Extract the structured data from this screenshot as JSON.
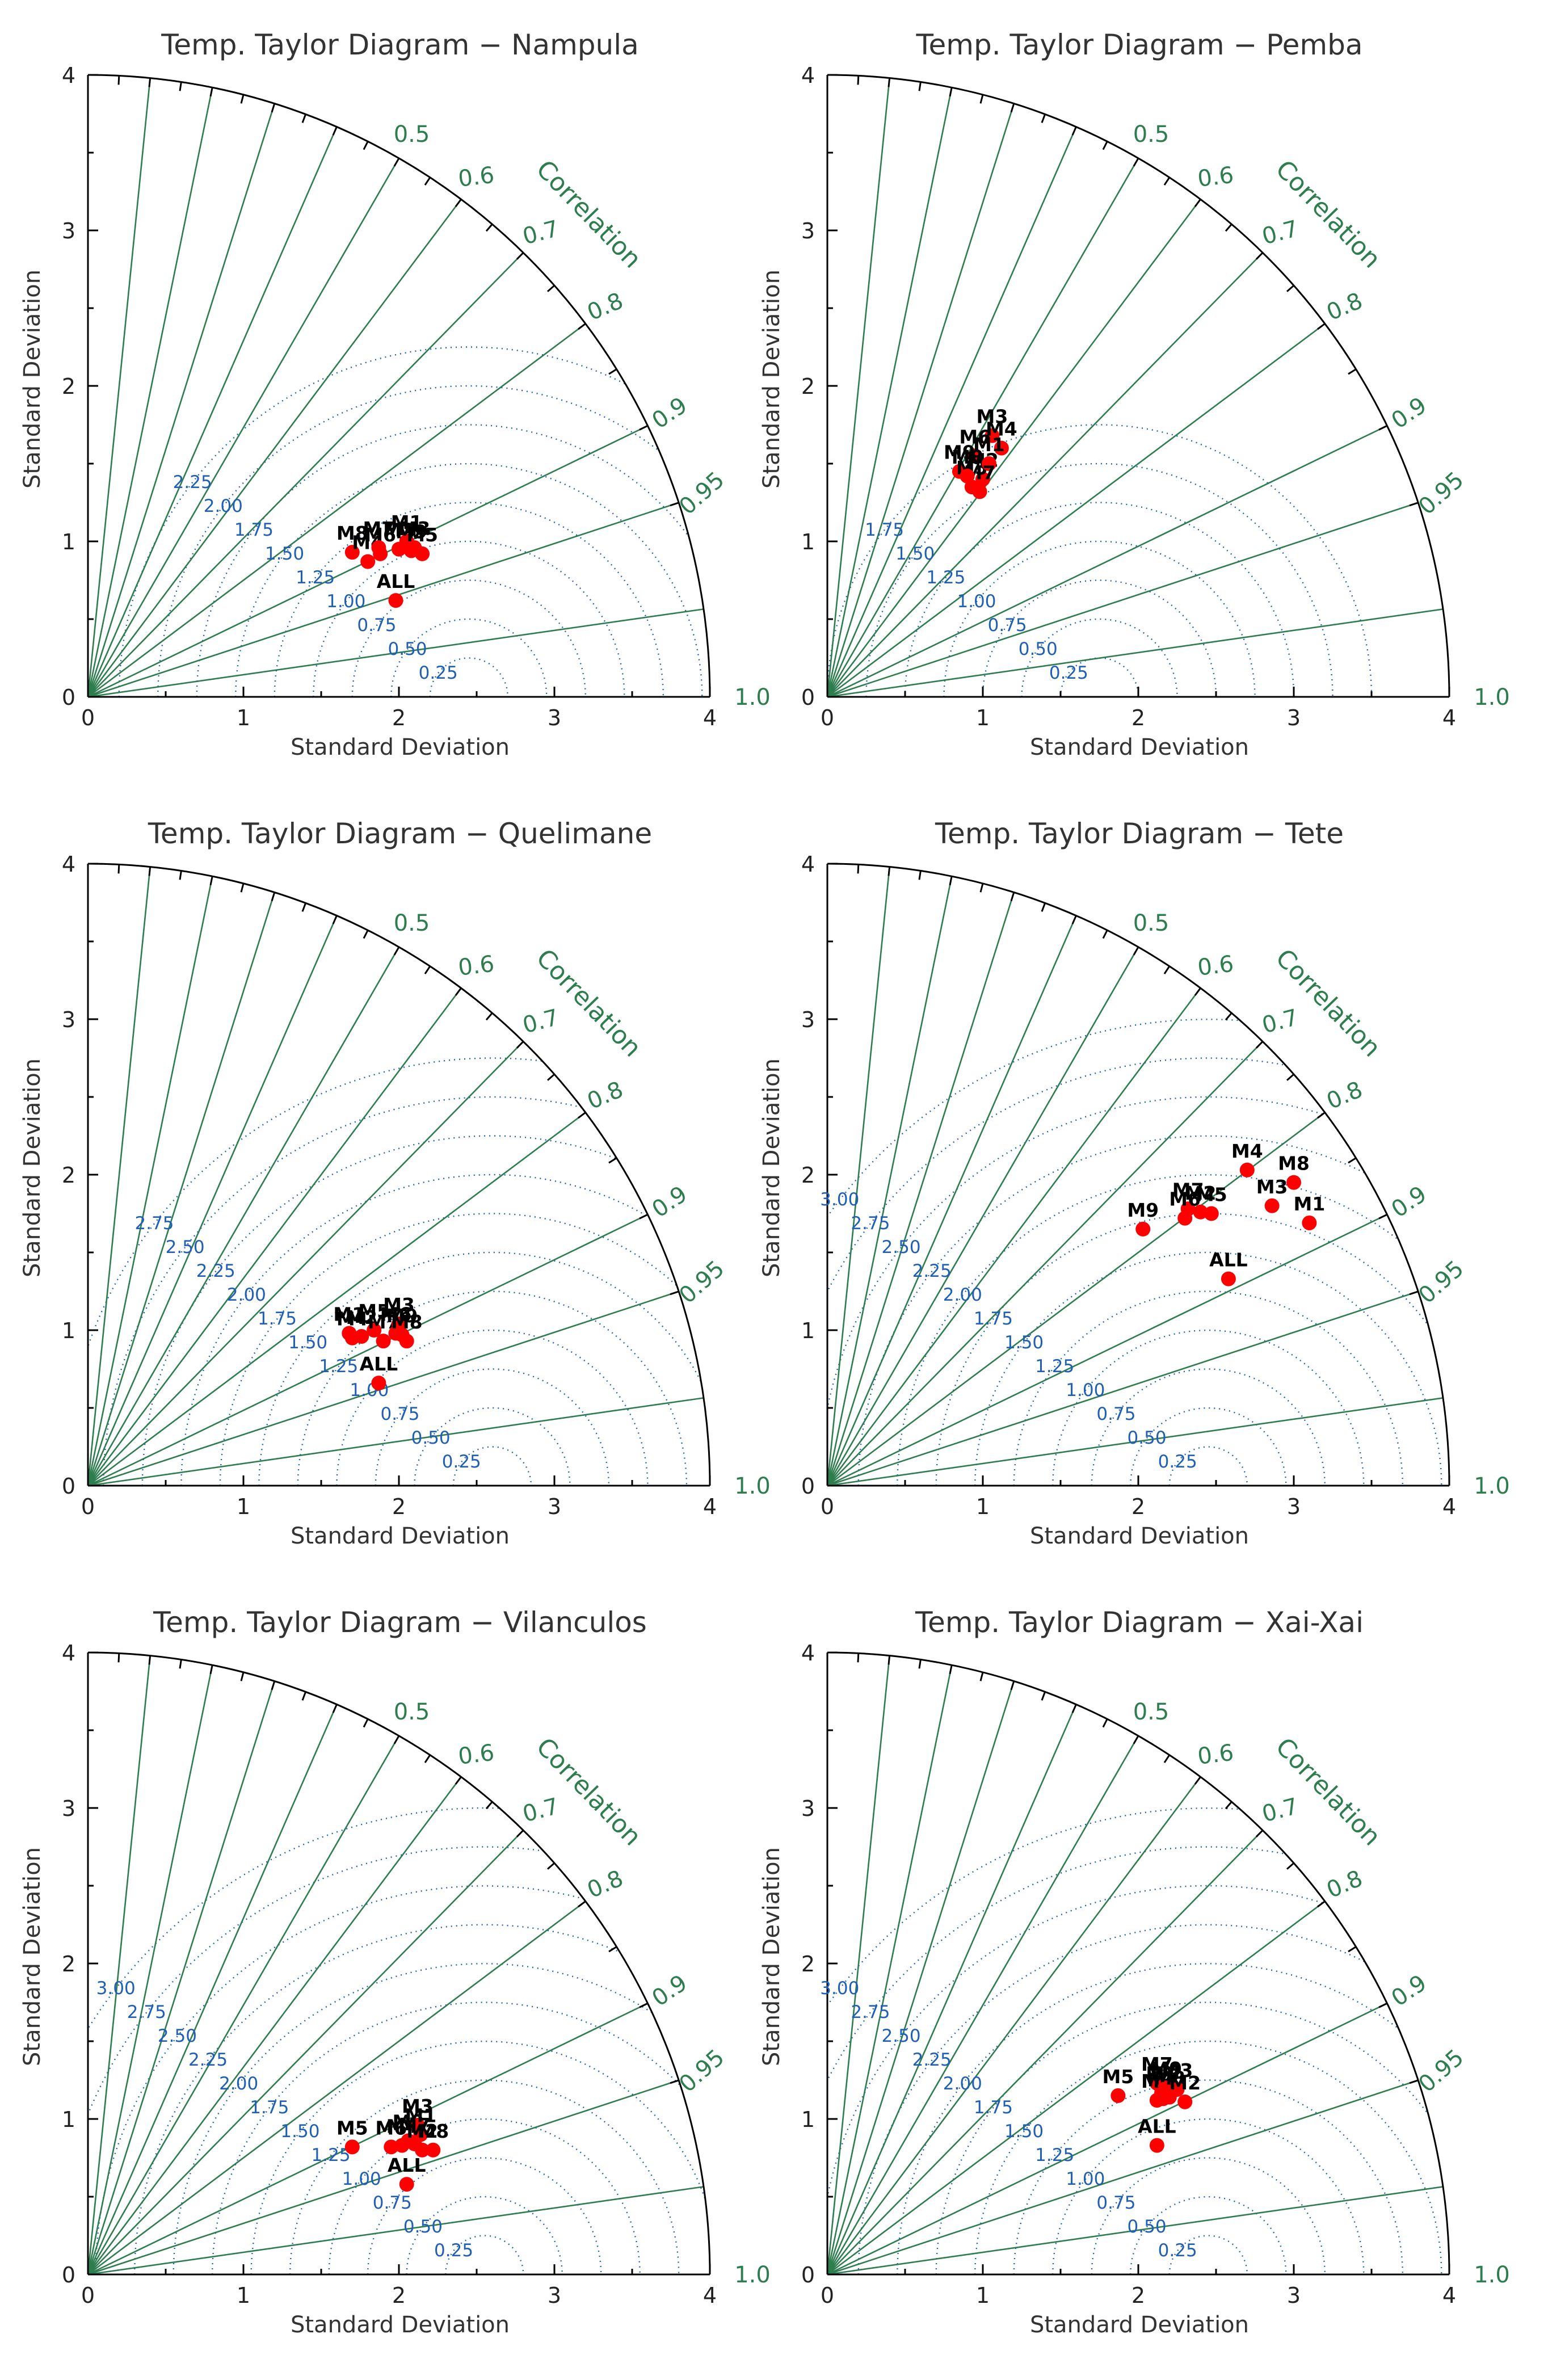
{
  "chart_data": [
    {
      "type": "scatter",
      "subtype": "taylor",
      "title": "Temp. Taylor Diagram − Nampula",
      "xlabel": "Standard Deviation",
      "ylabel": "Standard Deviation",
      "corr_title": "Correlation",
      "xlim": [
        0,
        4
      ],
      "ylim": [
        0,
        4
      ],
      "ticks": [
        "0",
        "1",
        "2",
        "3",
        "4"
      ],
      "corr_ticks": [
        "0.5",
        "0.6",
        "0.7",
        "0.8",
        "0.9",
        "0.95",
        "1.0"
      ],
      "ref_std": 2.45,
      "rms_levels": [
        "2.25",
        "2.00",
        "1.75",
        "1.50",
        "1.25",
        "1.00",
        "0.75",
        "0.50",
        "0.25"
      ],
      "points": [
        {
          "name": "M8",
          "x": 1.7,
          "y": 0.93
        },
        {
          "name": "M4",
          "x": 1.8,
          "y": 0.87
        },
        {
          "name": "M6",
          "x": 1.88,
          "y": 0.92
        },
        {
          "name": "M7",
          "x": 1.87,
          "y": 0.96
        },
        {
          "name": "M2",
          "x": 2.0,
          "y": 0.95
        },
        {
          "name": "M1",
          "x": 2.05,
          "y": 1.0
        },
        {
          "name": "M3",
          "x": 2.1,
          "y": 0.96
        },
        {
          "name": "M5",
          "x": 2.15,
          "y": 0.92
        },
        {
          "name": "M9",
          "x": 2.08,
          "y": 0.94
        },
        {
          "name": "ALL",
          "x": 1.98,
          "y": 0.62
        }
      ]
    },
    {
      "type": "scatter",
      "subtype": "taylor",
      "title": "Temp. Taylor Diagram − Pemba",
      "xlabel": "Standard Deviation",
      "ylabel": "Standard Deviation",
      "corr_title": "Correlation",
      "xlim": [
        0,
        4
      ],
      "ylim": [
        0,
        4
      ],
      "ticks": [
        "0",
        "1",
        "2",
        "3",
        "4"
      ],
      "corr_ticks": [
        "0.5",
        "0.6",
        "0.7",
        "0.8",
        "0.9",
        "0.95",
        "1.0"
      ],
      "ref_std": 1.75,
      "rms_levels": [
        "1.75",
        "1.50",
        "1.25",
        "1.00",
        "0.75",
        "0.50",
        "0.25"
      ],
      "points": [
        {
          "name": "M3",
          "x": 1.06,
          "y": 1.68
        },
        {
          "name": "M4",
          "x": 1.12,
          "y": 1.6
        },
        {
          "name": "M6",
          "x": 0.95,
          "y": 1.55
        },
        {
          "name": "M9",
          "x": 0.85,
          "y": 1.45
        },
        {
          "name": "M2",
          "x": 1.0,
          "y": 1.4
        },
        {
          "name": "M5",
          "x": 0.93,
          "y": 1.35
        },
        {
          "name": "M1",
          "x": 1.04,
          "y": 1.5
        },
        {
          "name": "M7",
          "x": 0.98,
          "y": 1.32
        },
        {
          "name": "M8",
          "x": 0.9,
          "y": 1.42
        }
      ]
    },
    {
      "type": "scatter",
      "subtype": "taylor",
      "title": "Temp. Taylor Diagram − Quelimane",
      "xlabel": "Standard Deviation",
      "ylabel": "Standard Deviation",
      "corr_title": "Correlation",
      "xlim": [
        0,
        4
      ],
      "ylim": [
        0,
        4
      ],
      "ticks": [
        "0",
        "1",
        "2",
        "3",
        "4"
      ],
      "corr_ticks": [
        "0.5",
        "0.6",
        "0.7",
        "0.8",
        "0.9",
        "0.95",
        "1.0"
      ],
      "ref_std": 2.6,
      "rms_levels": [
        "2.75",
        "2.50",
        "2.25",
        "2.00",
        "1.75",
        "1.50",
        "1.25",
        "1.00",
        "0.75",
        "0.50",
        "0.25"
      ],
      "points": [
        {
          "name": "M1",
          "x": 1.68,
          "y": 0.98
        },
        {
          "name": "M2",
          "x": 1.76,
          "y": 0.96
        },
        {
          "name": "M4",
          "x": 1.7,
          "y": 0.95
        },
        {
          "name": "M5",
          "x": 1.84,
          "y": 1.0
        },
        {
          "name": "M7",
          "x": 1.9,
          "y": 0.93
        },
        {
          "name": "M3",
          "x": 2.0,
          "y": 1.04
        },
        {
          "name": "M6",
          "x": 1.98,
          "y": 0.98
        },
        {
          "name": "M9",
          "x": 2.02,
          "y": 0.97
        },
        {
          "name": "M8",
          "x": 2.05,
          "y": 0.93
        },
        {
          "name": "ALL",
          "x": 1.87,
          "y": 0.66
        }
      ]
    },
    {
      "type": "scatter",
      "subtype": "taylor",
      "title": "Temp. Taylor Diagram − Tete",
      "xlabel": "Standard Deviation",
      "ylabel": "Standard Deviation",
      "corr_title": "Correlation",
      "xlim": [
        0,
        4
      ],
      "ylim": [
        0,
        4
      ],
      "ticks": [
        "0",
        "1",
        "2",
        "3",
        "4"
      ],
      "corr_ticks": [
        "0.5",
        "0.6",
        "0.7",
        "0.8",
        "0.9",
        "0.95",
        "1.0"
      ],
      "ref_std": 2.45,
      "rms_levels": [
        "3.00",
        "2.75",
        "2.50",
        "2.25",
        "2.00",
        "1.75",
        "1.50",
        "1.25",
        "1.00",
        "0.75",
        "0.50",
        "0.25"
      ],
      "points": [
        {
          "name": "M4",
          "x": 2.7,
          "y": 2.03
        },
        {
          "name": "M8",
          "x": 3.0,
          "y": 1.95
        },
        {
          "name": "M3",
          "x": 2.86,
          "y": 1.8
        },
        {
          "name": "M1",
          "x": 3.1,
          "y": 1.69
        },
        {
          "name": "M7",
          "x": 2.32,
          "y": 1.78
        },
        {
          "name": "M6",
          "x": 2.3,
          "y": 1.72
        },
        {
          "name": "M2",
          "x": 2.4,
          "y": 1.76
        },
        {
          "name": "M5",
          "x": 2.47,
          "y": 1.75
        },
        {
          "name": "M9",
          "x": 2.03,
          "y": 1.65
        },
        {
          "name": "ALL",
          "x": 2.58,
          "y": 1.33
        }
      ]
    },
    {
      "type": "scatter",
      "subtype": "taylor",
      "title": "Temp. Taylor Diagram − Vilanculos",
      "xlabel": "Standard Deviation",
      "ylabel": "Standard Deviation",
      "corr_title": "Correlation",
      "xlim": [
        0,
        4
      ],
      "ylim": [
        0,
        4
      ],
      "ticks": [
        "0",
        "1",
        "2",
        "3",
        "4"
      ],
      "corr_ticks": [
        "0.5",
        "0.6",
        "0.7",
        "0.8",
        "0.9",
        "0.95",
        "1.0"
      ],
      "ref_std": 2.55,
      "rms_levels": [
        "3.00",
        "2.75",
        "2.50",
        "2.25",
        "2.00",
        "1.75",
        "1.50",
        "1.25",
        "1.00",
        "0.75",
        "0.50",
        "0.25"
      ],
      "points": [
        {
          "name": "M5",
          "x": 1.7,
          "y": 0.82
        },
        {
          "name": "M6",
          "x": 1.95,
          "y": 0.82
        },
        {
          "name": "M4",
          "x": 2.02,
          "y": 0.83
        },
        {
          "name": "M9",
          "x": 2.06,
          "y": 0.86
        },
        {
          "name": "M3",
          "x": 2.12,
          "y": 0.96
        },
        {
          "name": "M1",
          "x": 2.14,
          "y": 0.9
        },
        {
          "name": "M7",
          "x": 2.1,
          "y": 0.84
        },
        {
          "name": "M2",
          "x": 2.15,
          "y": 0.8
        },
        {
          "name": "M8",
          "x": 2.22,
          "y": 0.8
        },
        {
          "name": "ALL",
          "x": 2.05,
          "y": 0.58
        }
      ]
    },
    {
      "type": "scatter",
      "subtype": "taylor",
      "title": "Temp. Taylor Diagram − Xai-Xai",
      "xlabel": "Standard Deviation",
      "ylabel": "Standard Deviation",
      "corr_title": "Correlation",
      "xlim": [
        0,
        4
      ],
      "ylim": [
        0,
        4
      ],
      "ticks": [
        "0",
        "1",
        "2",
        "3",
        "4"
      ],
      "corr_ticks": [
        "0.5",
        "0.6",
        "0.7",
        "0.8",
        "0.9",
        "0.95",
        "1.0"
      ],
      "ref_std": 2.45,
      "rms_levels": [
        "3.00",
        "2.75",
        "2.50",
        "2.25",
        "2.00",
        "1.75",
        "1.50",
        "1.25",
        "1.00",
        "0.75",
        "0.50",
        "0.25"
      ],
      "points": [
        {
          "name": "M5",
          "x": 1.87,
          "y": 1.15
        },
        {
          "name": "M7",
          "x": 2.12,
          "y": 1.23
        },
        {
          "name": "M1",
          "x": 2.15,
          "y": 1.17
        },
        {
          "name": "M6",
          "x": 2.12,
          "y": 1.12
        },
        {
          "name": "M4",
          "x": 2.16,
          "y": 1.13
        },
        {
          "name": "M9",
          "x": 2.18,
          "y": 1.2
        },
        {
          "name": "M8",
          "x": 2.2,
          "y": 1.14
        },
        {
          "name": "M3",
          "x": 2.25,
          "y": 1.19
        },
        {
          "name": "M2",
          "x": 2.3,
          "y": 1.11
        },
        {
          "name": "ALL",
          "x": 2.12,
          "y": 0.83
        }
      ]
    }
  ]
}
